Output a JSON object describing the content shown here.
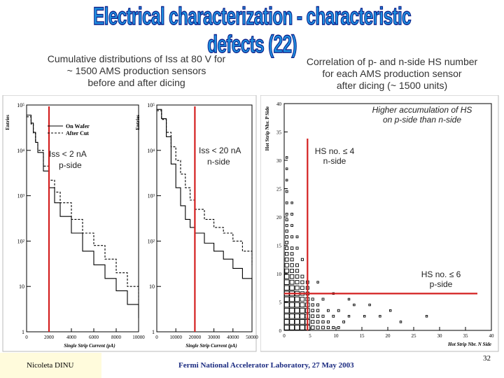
{
  "slide": {
    "title": "Electrical characterization - characteristic defects (22)",
    "left_caption": [
      "Cumulative distributions of Iss at 80 V for",
      "~ 1500 AMS production sensors",
      "before and after dicing"
    ],
    "right_caption": [
      "Correlation of p- and n-side HS number",
      "for each AMS production sensor",
      "after dicing (~ 1500 units)"
    ],
    "footer_author": "Nicoleta DINU",
    "footer_center": "Fermi National Accelerator Laboratory, 27 May 2003",
    "page_number": "32"
  },
  "annotations": {
    "p_side_cut": "Iss < 2 nA",
    "p_side_label": "p-side",
    "n_side_cut": "Iss < 20 nA",
    "n_side_label": "n-side",
    "higher_accum_1": "Higher accumulation of HS",
    "higher_accum_2": "on p-side than n-side",
    "hs_n_cut": "HS no. ≤ 4",
    "hs_n_label": "n-side",
    "hs_p_cut": "HS no. ≤ 6",
    "hs_p_label": "p-side"
  },
  "colors": {
    "title_fill": "#1e90e0",
    "title_stroke": "#0b1f8a",
    "cut_line": "#d42020"
  },
  "chart_data": [
    {
      "type": "line",
      "chart": "p-side leakage current",
      "ylabel": "Entries",
      "xlabel": "Single Strip Current (pA)",
      "yscale": "log",
      "ylim": [
        1,
        100000
      ],
      "xlim": [
        0,
        10000
      ],
      "y_ticks": [
        "1",
        "10",
        "10²",
        "10³",
        "10⁴",
        "10⁵"
      ],
      "x_ticks": [
        "0",
        "2000",
        "4000",
        "6000",
        "8000",
        "10000"
      ],
      "legend": [
        "On Wafer",
        "After Cut"
      ],
      "x": [
        200,
        400,
        600,
        800,
        1000,
        1500,
        2000,
        2500,
        3000,
        4000,
        5000,
        6000,
        7000,
        8000,
        9000,
        10000
      ],
      "series": [
        {
          "name": "On Wafer",
          "values": [
            60000,
            40000,
            25000,
            15000,
            9000,
            3500,
            1500,
            700,
            350,
            150,
            60,
            30,
            15,
            8,
            4,
            2
          ]
        },
        {
          "name": "After Cut",
          "values": [
            55000,
            38000,
            24000,
            15000,
            10000,
            4500,
            2200,
            1200,
            700,
            300,
            150,
            80,
            40,
            20,
            10,
            5
          ]
        }
      ],
      "cut": {
        "x": 2000,
        "label": "Iss < 2 nA"
      }
    },
    {
      "type": "line",
      "chart": "n-side leakage current",
      "ylabel": "Entries",
      "xlabel": "Single Strip Current (pA)",
      "yscale": "log",
      "ylim": [
        1,
        100000
      ],
      "xlim": [
        0,
        50000
      ],
      "y_ticks": [
        "1",
        "10",
        "10²",
        "10³",
        "10⁴",
        "10⁵"
      ],
      "x_ticks": [
        "0",
        "10000",
        "20000",
        "30000",
        "40000",
        "50000"
      ],
      "x": [
        1000,
        2500,
        5000,
        7500,
        10000,
        12500,
        15000,
        17500,
        20000,
        25000,
        30000,
        35000,
        40000,
        45000,
        50000
      ],
      "series": [
        {
          "name": "On Wafer",
          "values": [
            80000,
            50000,
            20000,
            5000,
            1500,
            600,
            300,
            200,
            150,
            90,
            60,
            40,
            25,
            15,
            5
          ]
        },
        {
          "name": "After Cut",
          "values": [
            75000,
            48000,
            25000,
            12000,
            6000,
            3000,
            1500,
            800,
            500,
            300,
            200,
            150,
            100,
            60,
            30
          ]
        }
      ],
      "cut": {
        "x": 20000,
        "label": "Iss < 20 nA"
      }
    },
    {
      "type": "scatter",
      "chart": "hot strip correlation",
      "xlabel": "Hot Strip Nbr. N Side",
      "ylabel": "Hot Strip Nbr. P Side",
      "xlim": [
        0,
        40
      ],
      "ylim": [
        0,
        40
      ],
      "x_ticks": [
        "0",
        "5",
        "10",
        "15",
        "20",
        "25",
        "30",
        "35",
        "40"
      ],
      "y_ticks": [
        "0",
        "5",
        "10",
        "15",
        "20",
        "25",
        "30",
        "35",
        "40"
      ],
      "points": [
        [
          0,
          0,
          120
        ],
        [
          1,
          0,
          100
        ],
        [
          2,
          0,
          80
        ],
        [
          3,
          0,
          60
        ],
        [
          4,
          0,
          45
        ],
        [
          0,
          1,
          110
        ],
        [
          1,
          1,
          90
        ],
        [
          2,
          1,
          70
        ],
        [
          3,
          1,
          50
        ],
        [
          4,
          1,
          35
        ],
        [
          0,
          2,
          95
        ],
        [
          1,
          2,
          75
        ],
        [
          2,
          2,
          55
        ],
        [
          3,
          2,
          40
        ],
        [
          4,
          2,
          28
        ],
        [
          0,
          3,
          85
        ],
        [
          1,
          3,
          65
        ],
        [
          2,
          3,
          45
        ],
        [
          3,
          3,
          32
        ],
        [
          4,
          3,
          22
        ],
        [
          0,
          4,
          70
        ],
        [
          1,
          4,
          50
        ],
        [
          2,
          4,
          38
        ],
        [
          3,
          4,
          25
        ],
        [
          4,
          4,
          18
        ],
        [
          0,
          5,
          60
        ],
        [
          1,
          5,
          42
        ],
        [
          2,
          5,
          30
        ],
        [
          3,
          5,
          20
        ],
        [
          4,
          5,
          14
        ],
        [
          0,
          6,
          50
        ],
        [
          1,
          6,
          35
        ],
        [
          2,
          6,
          25
        ],
        [
          3,
          6,
          16
        ],
        [
          4,
          6,
          10
        ],
        [
          0,
          7,
          40
        ],
        [
          1,
          7,
          28
        ],
        [
          2,
          7,
          20
        ],
        [
          3,
          7,
          12
        ],
        [
          4,
          7,
          8
        ],
        [
          0,
          8,
          32
        ],
        [
          1,
          8,
          22
        ],
        [
          2,
          8,
          15
        ],
        [
          3,
          8,
          9
        ],
        [
          4,
          8,
          6
        ],
        [
          0,
          9,
          26
        ],
        [
          1,
          9,
          18
        ],
        [
          2,
          9,
          12
        ],
        [
          3,
          9,
          7
        ],
        [
          0,
          10,
          20
        ],
        [
          1,
          10,
          14
        ],
        [
          2,
          10,
          9
        ],
        [
          0,
          11,
          16
        ],
        [
          1,
          11,
          10
        ],
        [
          2,
          11,
          7
        ],
        [
          0,
          12,
          13
        ],
        [
          1,
          12,
          8
        ],
        [
          0,
          13,
          10
        ],
        [
          1,
          13,
          6
        ],
        [
          0,
          14,
          8
        ],
        [
          1,
          14,
          5
        ],
        [
          0,
          15,
          6
        ],
        [
          0,
          16,
          5
        ],
        [
          0,
          17,
          4
        ],
        [
          0,
          18,
          3
        ],
        [
          0,
          19,
          3
        ],
        [
          0,
          20,
          2
        ],
        [
          0,
          22,
          2
        ],
        [
          0,
          24,
          2
        ],
        [
          0,
          26,
          1
        ],
        [
          0,
          28,
          1
        ],
        [
          0,
          30,
          1
        ],
        [
          1,
          16,
          3
        ],
        [
          1,
          18,
          2
        ],
        [
          1,
          20,
          2
        ],
        [
          1,
          22,
          1
        ],
        [
          2,
          14,
          3
        ],
        [
          2,
          16,
          2
        ],
        [
          3,
          12,
          3
        ],
        [
          5,
          0,
          12
        ],
        [
          6,
          0,
          8
        ],
        [
          7,
          0,
          6
        ],
        [
          8,
          0,
          4
        ],
        [
          9,
          0,
          3
        ],
        [
          10,
          0,
          2
        ],
        [
          5,
          1,
          9
        ],
        [
          6,
          1,
          6
        ],
        [
          7,
          1,
          4
        ],
        [
          8,
          1,
          3
        ],
        [
          5,
          2,
          7
        ],
        [
          6,
          2,
          5
        ],
        [
          7,
          2,
          3
        ],
        [
          9,
          2,
          2
        ],
        [
          5,
          3,
          5
        ],
        [
          6,
          3,
          4
        ],
        [
          8,
          3,
          2
        ],
        [
          5,
          4,
          4
        ],
        [
          6,
          4,
          3
        ],
        [
          5,
          5,
          3
        ],
        [
          7,
          5,
          2
        ],
        [
          10,
          3,
          2
        ],
        [
          11,
          1,
          2
        ],
        [
          12,
          2,
          1
        ],
        [
          13,
          4,
          1
        ],
        [
          15,
          2,
          1
        ],
        [
          16,
          4,
          1
        ],
        [
          18,
          2,
          1
        ],
        [
          20,
          3,
          1
        ],
        [
          22,
          1,
          1
        ],
        [
          12,
          5,
          1
        ],
        [
          9,
          6,
          1
        ],
        [
          27,
          2,
          1
        ],
        [
          6,
          8,
          1
        ]
      ],
      "cuts": {
        "n_side_max": 4,
        "p_side_max": 6
      }
    }
  ]
}
